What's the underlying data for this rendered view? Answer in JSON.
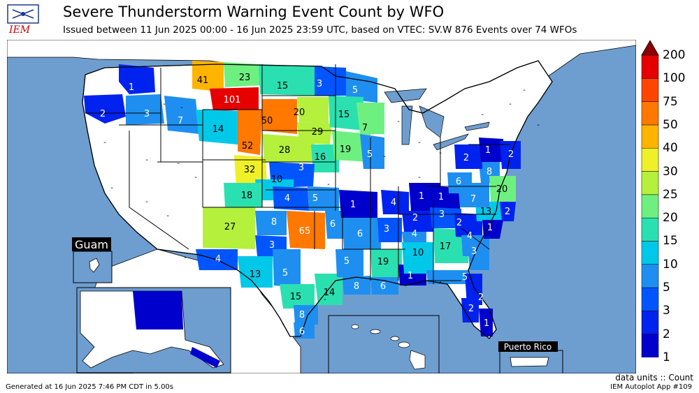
{
  "header": {
    "title": "Severe Thunderstorm Warning Event Count by WFO",
    "subtitle": "Issued between 11 Jun 2025 00:00 - 16 Jun 2025 23:59 UTC, based on VTEC: SV.W   876 Events over 74 WFOs",
    "logo_text": "IEM"
  },
  "footer": {
    "generated": "Generated at 16 Jun 2025 7:46 PM CDT in 5.00s",
    "units": "data units :: Count",
    "app": "IEM Autoplot App #109"
  },
  "insets": {
    "guam": "Guam",
    "puerto_rico": "Puerto Rico"
  },
  "colors": {
    "ocean": "#6e9ecf",
    "land": "#ffffff",
    "border": "#000000"
  },
  "legend": {
    "levels": [
      "1",
      "2",
      "3",
      "5",
      "10",
      "15",
      "20",
      "25",
      "30",
      "40",
      "50",
      "75",
      "100",
      "200"
    ],
    "colors": [
      "#0000cc",
      "#0022ee",
      "#0055ff",
      "#1e8ff0",
      "#00c8e8",
      "#2be0b0",
      "#6ef080",
      "#b4f03c",
      "#f0f028",
      "#ffb400",
      "#ff7800",
      "#ff4600",
      "#e60000",
      "#8c0000"
    ]
  },
  "wfo_counts": [
    {
      "wfo": "PDT",
      "value": "1"
    },
    {
      "wfo": "PQR",
      "value": "2"
    },
    {
      "wfo": "BOI",
      "value": "3"
    },
    {
      "wfo": "PIH",
      "value": "7"
    },
    {
      "wfo": "RIW",
      "value": "14"
    },
    {
      "wfo": "TFX",
      "value": "41"
    },
    {
      "wfo": "GGW",
      "value": "23"
    },
    {
      "wfo": "BYZ",
      "value": "101"
    },
    {
      "wfo": "BIS",
      "value": "15"
    },
    {
      "wfo": "FGF",
      "value": "3"
    },
    {
      "wfo": "DLH",
      "value": "5"
    },
    {
      "wfo": "UNR",
      "value": "50"
    },
    {
      "wfo": "ABR",
      "value": "20"
    },
    {
      "wfo": "FSD",
      "value": "29"
    },
    {
      "wfo": "MPX",
      "value": "15"
    },
    {
      "wfo": "ARX",
      "value": "7"
    },
    {
      "wfo": "CYS",
      "value": "52"
    },
    {
      "wfo": "LBF",
      "value": "28"
    },
    {
      "wfo": "OAX",
      "value": "16"
    },
    {
      "wfo": "DMX",
      "value": "19"
    },
    {
      "wfo": "DVN",
      "value": "5"
    },
    {
      "wfo": "BOU",
      "value": "32"
    },
    {
      "wfo": "GLD",
      "value": "3"
    },
    {
      "wfo": "PUB",
      "value": "10"
    },
    {
      "wfo": "DDC",
      "value": "4"
    },
    {
      "wfo": "ICT",
      "value": "5"
    },
    {
      "wfo": "ABQ",
      "value": "18"
    },
    {
      "wfo": "EPZ",
      "value": "27"
    },
    {
      "wfo": "AMA",
      "value": "8"
    },
    {
      "wfo": "OUN",
      "value": "65"
    },
    {
      "wfo": "TSA",
      "value": "6"
    },
    {
      "wfo": "LUB",
      "value": "3"
    },
    {
      "wfo": "MAF",
      "value": "4"
    },
    {
      "wfo": "SJT",
      "value": "13"
    },
    {
      "wfo": "FWD",
      "value": "5"
    },
    {
      "wfo": "EWX",
      "value": "15"
    },
    {
      "wfo": "HGX",
      "value": "14"
    },
    {
      "wfo": "CRP",
      "value": "8"
    },
    {
      "wfo": "BRO",
      "value": "6"
    },
    {
      "wfo": "SGF",
      "value": "1"
    },
    {
      "wfo": "LZK",
      "value": "6"
    },
    {
      "wfo": "SHV",
      "value": "5"
    },
    {
      "wfo": "LCH",
      "value": "8"
    },
    {
      "wfo": "LIX",
      "value": "6"
    },
    {
      "wfo": "JAN",
      "value": "19"
    },
    {
      "wfo": "MOB",
      "value": "1"
    },
    {
      "wfo": "MEG",
      "value": "3"
    },
    {
      "wfo": "PAH",
      "value": "4"
    },
    {
      "wfo": "LMK",
      "value": "1"
    },
    {
      "wfo": "JKL",
      "value": "1"
    },
    {
      "wfo": "OHX",
      "value": "2"
    },
    {
      "wfo": "HUN",
      "value": "4"
    },
    {
      "wfo": "BMX",
      "value": "10"
    },
    {
      "wfo": "MRX",
      "value": "3"
    },
    {
      "wfo": "FFC",
      "value": "17"
    },
    {
      "wfo": "GSP",
      "value": "2"
    },
    {
      "wfo": "CAE",
      "value": "4"
    },
    {
      "wfo": "CHS",
      "value": "3"
    },
    {
      "wfo": "RAH",
      "value": "13"
    },
    {
      "wfo": "ILM",
      "value": "1"
    },
    {
      "wfo": "MHX",
      "value": "2"
    },
    {
      "wfo": "RNK",
      "value": "7"
    },
    {
      "wfo": "LWX",
      "value": "8"
    },
    {
      "wfo": "AKQ",
      "value": "20"
    },
    {
      "wfo": "RLX",
      "value": "6"
    },
    {
      "wfo": "CTP",
      "value": "2"
    },
    {
      "wfo": "PHI",
      "value": "1"
    },
    {
      "wfo": "OKX",
      "value": "2"
    },
    {
      "wfo": "TAE",
      "value": "5"
    },
    {
      "wfo": "JAX",
      "value": "2"
    },
    {
      "wfo": "TBW",
      "value": "2"
    },
    {
      "wfo": "MLB",
      "value": "1"
    },
    {
      "wfo": "AFG",
      "value": "1"
    },
    {
      "wfo": "AJK",
      "value": "1"
    }
  ]
}
